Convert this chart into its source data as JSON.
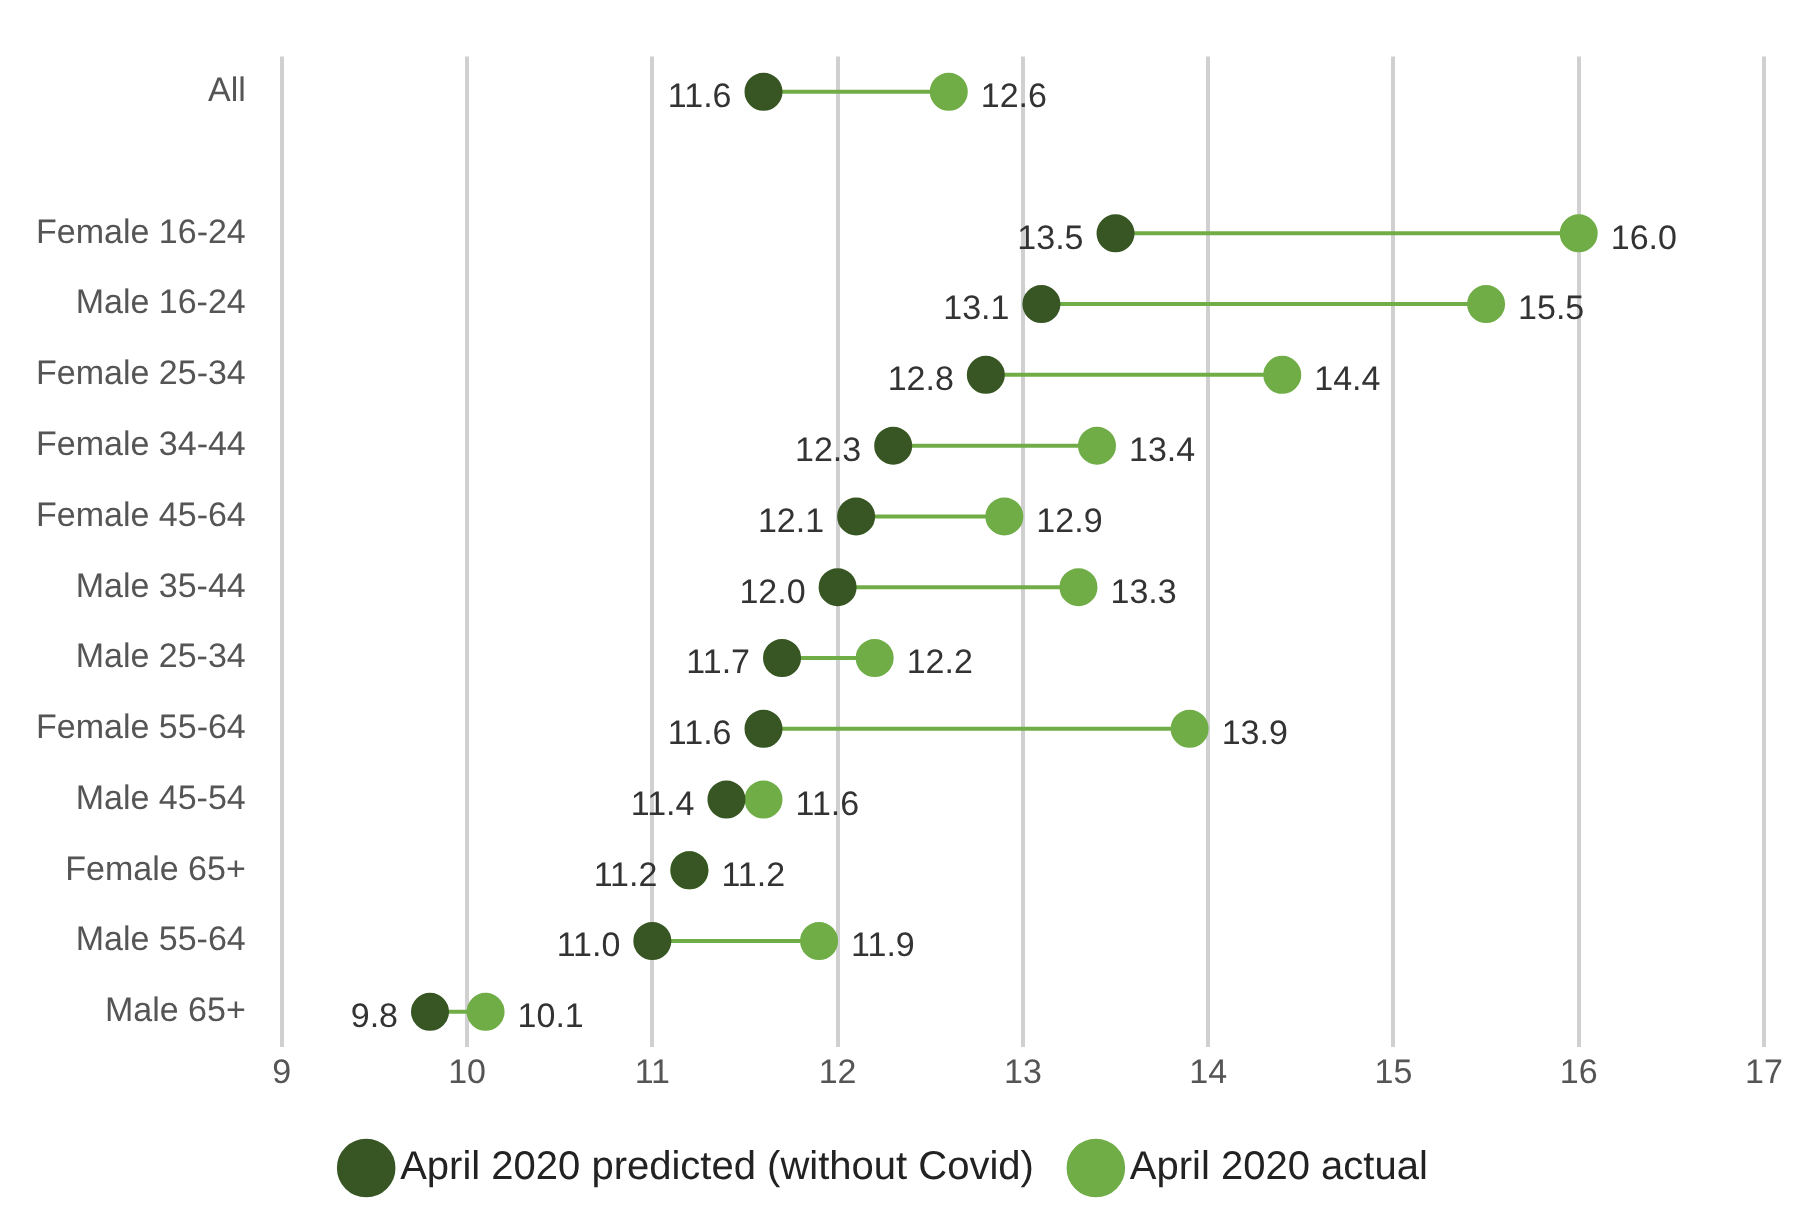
{
  "chart_data": {
    "type": "scatter",
    "orientation": "horizontal",
    "categories": [
      "All",
      null,
      "Female 16-24",
      "Male 16-24",
      "Female 25-34",
      "Female 34-44",
      "Female 45-64",
      "Male 35-44",
      "Male 25-34",
      "Female 55-64",
      "Male 45-54",
      "Female 65+",
      "Male 55-64",
      "Male 65+"
    ],
    "series": [
      {
        "name": "April 2020 predicted (without Covid)",
        "color": "#375623",
        "values": [
          11.6,
          null,
          13.5,
          13.1,
          12.8,
          12.3,
          12.1,
          12.0,
          11.7,
          11.6,
          11.4,
          11.2,
          11.0,
          9.8
        ],
        "value_labels": [
          "11.6",
          null,
          "13.5",
          "13.1",
          "12.8",
          "12.3",
          "12.1",
          "12.0",
          "11.7",
          "11.6",
          "11.4",
          "11.2",
          "11.0",
          "9.8"
        ]
      },
      {
        "name": "April 2020 actual",
        "color": "#70ad47",
        "values": [
          12.6,
          null,
          16.0,
          15.5,
          14.4,
          13.4,
          12.9,
          13.3,
          12.2,
          13.9,
          11.6,
          11.2,
          11.9,
          10.1
        ],
        "value_labels": [
          "12.6",
          null,
          "16.0",
          "15.5",
          "14.4",
          "13.4",
          "12.9",
          "13.3",
          "12.2",
          "13.9",
          "11.6",
          "11.2",
          "11.9",
          "10.1"
        ]
      }
    ],
    "xlim": [
      9,
      17
    ],
    "xticks": [
      9,
      10,
      11,
      12,
      13,
      14,
      15,
      16,
      17
    ],
    "grid": "x",
    "legend": "bottom",
    "marker": "circle"
  }
}
